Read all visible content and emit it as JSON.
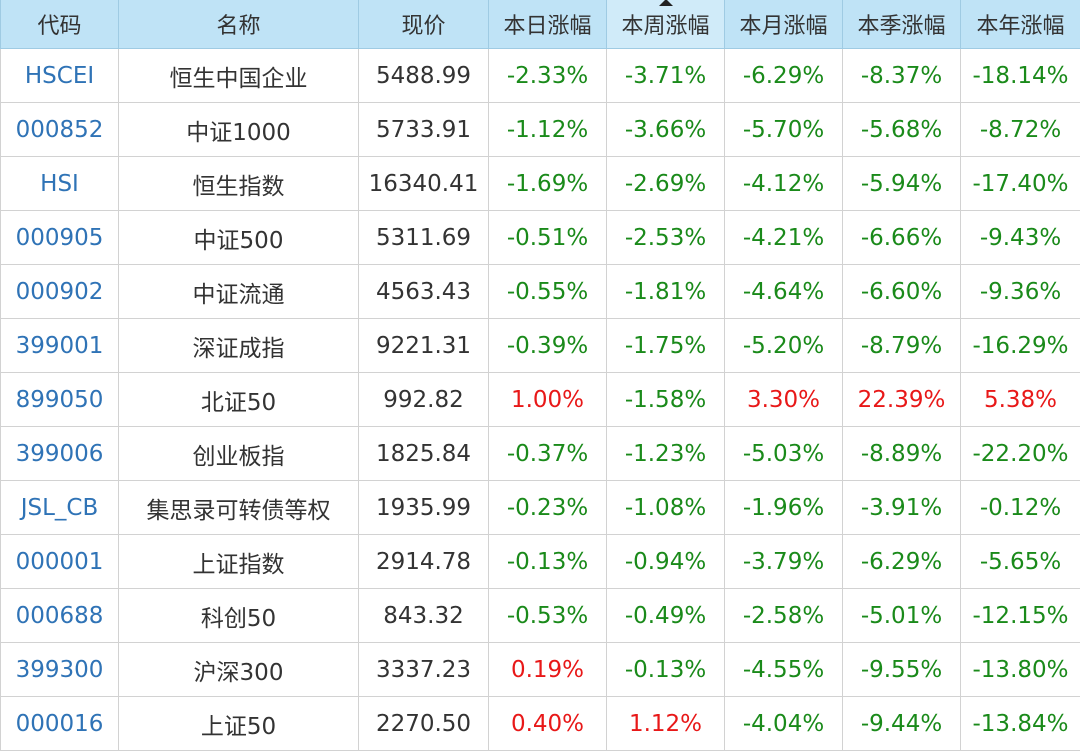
{
  "header": {
    "columns": [
      "代码",
      "名称",
      "现价",
      "本日涨幅",
      "本周涨幅",
      "本月涨幅",
      "本季涨幅",
      "本年涨幅"
    ],
    "sorted_column_index": 4
  },
  "colors": {
    "header_bg": "#bfe3f6",
    "code_link": "#2f73b6",
    "negative": "#1a8a1a",
    "positive": "#e81818"
  },
  "rows": [
    {
      "code": "HSCEI",
      "name": "恒生中国企业",
      "price": "5488.99",
      "day": "-2.33%",
      "week": "-3.71%",
      "month": "-6.29%",
      "quarter": "-8.37%",
      "year": "-18.14%"
    },
    {
      "code": "000852",
      "name": "中证1000",
      "price": "5733.91",
      "day": "-1.12%",
      "week": "-3.66%",
      "month": "-5.70%",
      "quarter": "-5.68%",
      "year": "-8.72%"
    },
    {
      "code": "HSI",
      "name": "恒生指数",
      "price": "16340.41",
      "day": "-1.69%",
      "week": "-2.69%",
      "month": "-4.12%",
      "quarter": "-5.94%",
      "year": "-17.40%"
    },
    {
      "code": "000905",
      "name": "中证500",
      "price": "5311.69",
      "day": "-0.51%",
      "week": "-2.53%",
      "month": "-4.21%",
      "quarter": "-6.66%",
      "year": "-9.43%"
    },
    {
      "code": "000902",
      "name": "中证流通",
      "price": "4563.43",
      "day": "-0.55%",
      "week": "-1.81%",
      "month": "-4.64%",
      "quarter": "-6.60%",
      "year": "-9.36%"
    },
    {
      "code": "399001",
      "name": "深证成指",
      "price": "9221.31",
      "day": "-0.39%",
      "week": "-1.75%",
      "month": "-5.20%",
      "quarter": "-8.79%",
      "year": "-16.29%"
    },
    {
      "code": "899050",
      "name": "北证50",
      "price": "992.82",
      "day": "1.00%",
      "week": "-1.58%",
      "month": "3.30%",
      "quarter": "22.39%",
      "year": "5.38%"
    },
    {
      "code": "399006",
      "name": "创业板指",
      "price": "1825.84",
      "day": "-0.37%",
      "week": "-1.23%",
      "month": "-5.03%",
      "quarter": "-8.89%",
      "year": "-22.20%"
    },
    {
      "code": "JSL_CB",
      "name": "集思录可转债等权",
      "price": "1935.99",
      "day": "-0.23%",
      "week": "-1.08%",
      "month": "-1.96%",
      "quarter": "-3.91%",
      "year": "-0.12%"
    },
    {
      "code": "000001",
      "name": "上证指数",
      "price": "2914.78",
      "day": "-0.13%",
      "week": "-0.94%",
      "month": "-3.79%",
      "quarter": "-6.29%",
      "year": "-5.65%"
    },
    {
      "code": "000688",
      "name": "科创50",
      "price": "843.32",
      "day": "-0.53%",
      "week": "-0.49%",
      "month": "-2.58%",
      "quarter": "-5.01%",
      "year": "-12.15%"
    },
    {
      "code": "399300",
      "name": "沪深300",
      "price": "3337.23",
      "day": "0.19%",
      "week": "-0.13%",
      "month": "-4.55%",
      "quarter": "-9.55%",
      "year": "-13.80%"
    },
    {
      "code": "000016",
      "name": "上证50",
      "price": "2270.50",
      "day": "0.40%",
      "week": "1.12%",
      "month": "-4.04%",
      "quarter": "-9.44%",
      "year": "-13.84%"
    }
  ]
}
